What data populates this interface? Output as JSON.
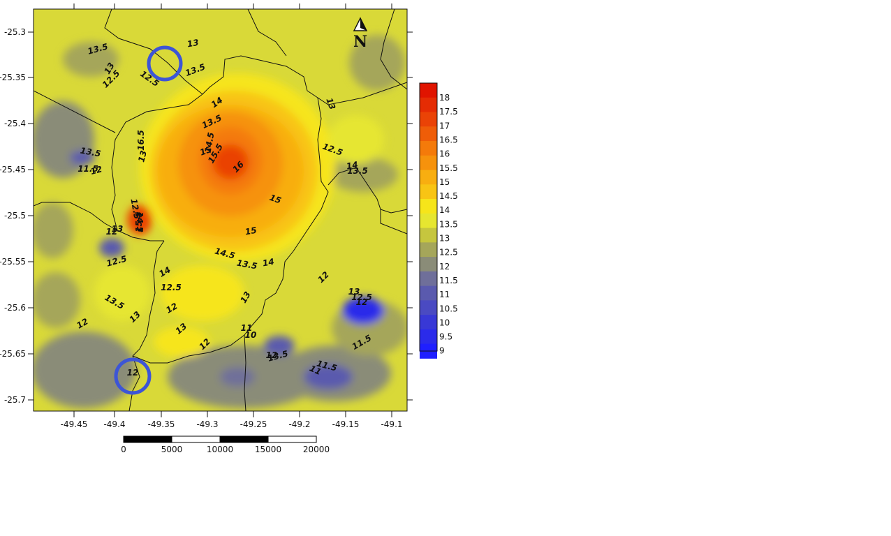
{
  "map": {
    "x_ticks": [
      "-49.45",
      "-49.4",
      "-49.35",
      "-49.3",
      "-49.25",
      "-49.2",
      "-49.15",
      "-49.1"
    ],
    "y_ticks": [
      "-25.3",
      "-25.35",
      "-25.4",
      "-25.45",
      "-25.5",
      "-25.55",
      "-25.6",
      "-25.65",
      "-25.7"
    ],
    "north_label": "N",
    "colors": {
      "c9": "#1f1fff",
      "c95": "#2b2bea",
      "c10": "#3838d6",
      "c105": "#4a4ac2",
      "c11": "#5a5aae",
      "c115": "#6f6f9a",
      "c12": "#8a8c78",
      "c125": "#a5a65a",
      "c13": "#c6c63e",
      "c135": "#e6e630",
      "c14": "#f6e51a",
      "c145": "#f8c414",
      "c15": "#f8ae10",
      "c155": "#f6920c",
      "c16": "#f47a0a",
      "c165": "#ef5d08",
      "c17": "#ea4306",
      "c175": "#e52c04",
      "c18": "#e01400",
      "border": "#111111",
      "circle": "#3d55d6"
    },
    "contour_labels": [
      "13.5",
      "13",
      "12.5",
      "12.5",
      "13",
      "13.5",
      "14",
      "13.5",
      "13",
      "14.5",
      "15",
      "15.5",
      "16",
      "16.5",
      "13",
      "13.5",
      "11.5",
      "12",
      "12.5",
      "14",
      "13.5",
      "12.5",
      "14.5",
      "15.5",
      "13",
      "12",
      "15",
      "15",
      "14.5",
      "13.5",
      "14",
      "12.5",
      "14",
      "12.5",
      "13.5",
      "13",
      "12",
      "12",
      "13",
      "13",
      "12",
      "11",
      "10",
      "12",
      "13.5",
      "13",
      "12.5",
      "12",
      "12",
      "11.5",
      "11.5",
      "11",
      "12"
    ]
  },
  "colorbar": {
    "labels": [
      "18",
      "17.5",
      "17",
      "16.5",
      "16",
      "15.5",
      "15",
      "14.5",
      "14",
      "13.5",
      "13",
      "12.5",
      "12",
      "11.5",
      "11",
      "10.5",
      "10",
      "9.5",
      "9"
    ]
  },
  "scalebar": {
    "labels": [
      "0",
      "5000",
      "10000",
      "15000",
      "20000"
    ]
  }
}
